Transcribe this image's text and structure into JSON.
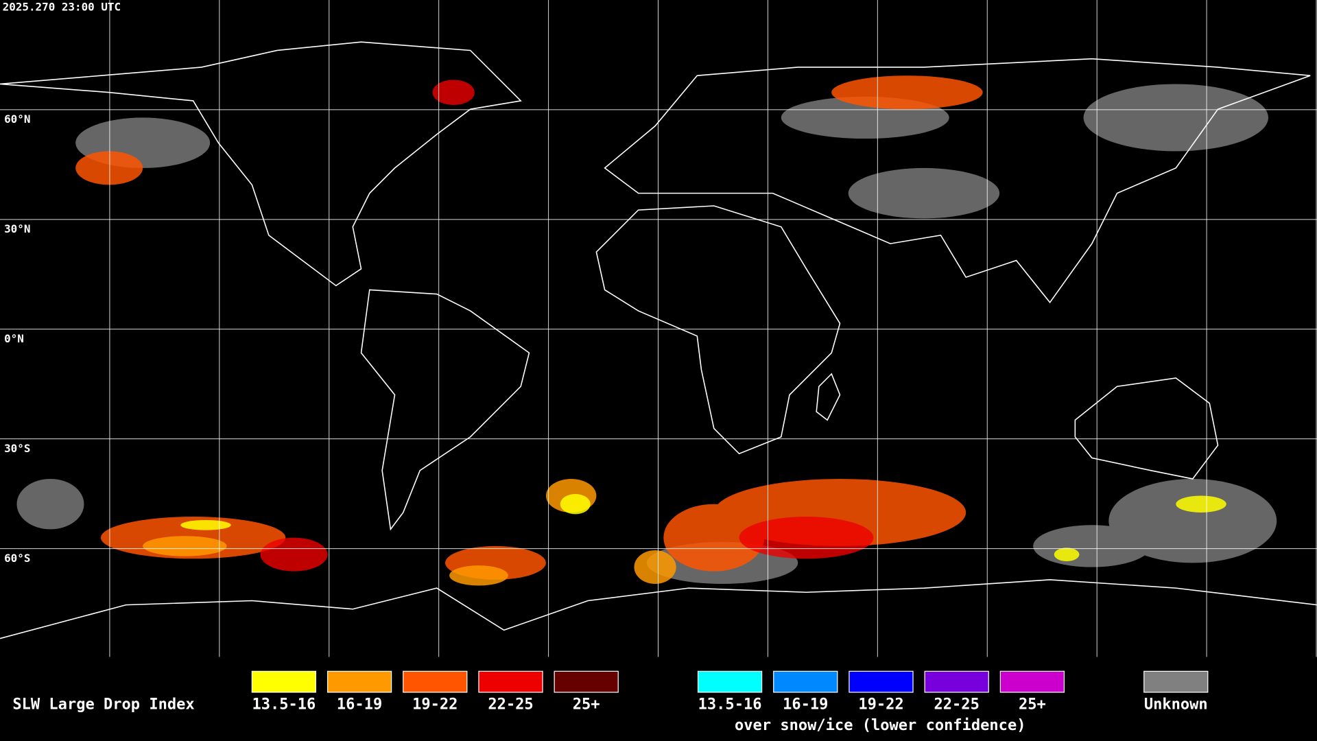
{
  "header": {
    "timestamp": "2025.270 23:00 UTC"
  },
  "latitude_labels": [
    "60°N",
    "30°N",
    "0°N",
    "30°S",
    "60°S"
  ],
  "legend": {
    "title": "SLW Large Drop Index",
    "items": [
      {
        "label": "13.5-16",
        "color": "#ffff00"
      },
      {
        "label": "16-19",
        "color": "#ff9900"
      },
      {
        "label": "19-22",
        "color": "#ff5500"
      },
      {
        "label": "22-25",
        "color": "#ee0000"
      },
      {
        "label": "25+",
        "color": "#660000"
      }
    ],
    "snow_ice_items": [
      {
        "label": "13.5-16",
        "color": "#00ffff"
      },
      {
        "label": "16-19",
        "color": "#0088ff"
      },
      {
        "label": "19-22",
        "color": "#0000ff"
      },
      {
        "label": "22-25",
        "color": "#7700dd"
      },
      {
        "label": "25+",
        "color": "#cc00cc"
      }
    ],
    "snow_ice_caption": "over snow/ice (lower confidence)",
    "unknown": {
      "label": "Unknown",
      "color": "#808080"
    }
  }
}
